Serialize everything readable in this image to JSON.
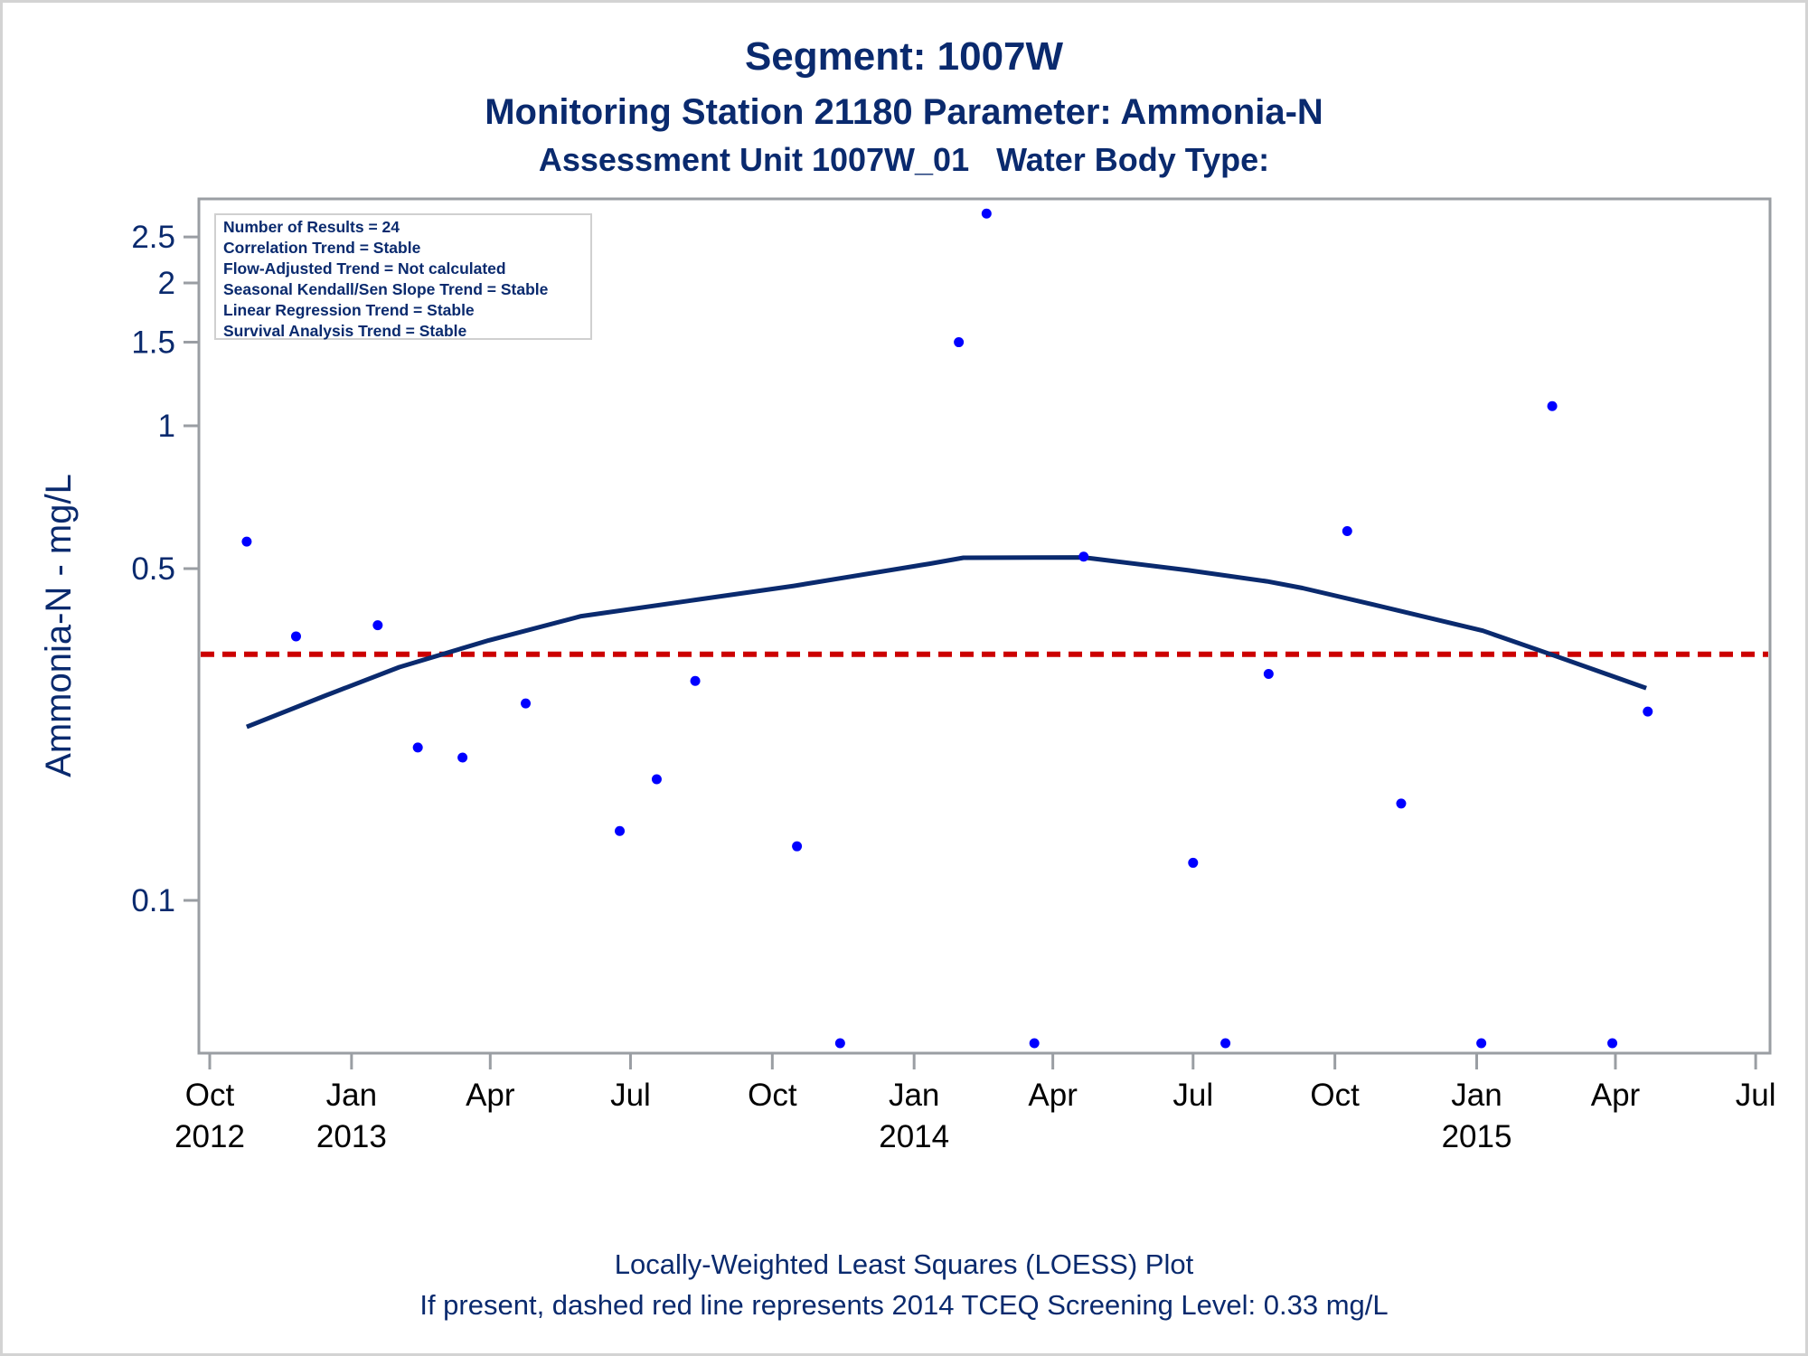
{
  "titles": {
    "line1": "Segment: 1007W",
    "line2": "Monitoring Station 21180 Parameter: Ammonia-N",
    "line3": "Assessment Unit 1007W_01   Water Body Type:"
  },
  "footnotes": {
    "line1": "Locally-Weighted Least Squares (LOESS) Plot",
    "line2": "If present, dashed red line represents 2014 TCEQ Screening Level: 0.33 mg/L"
  },
  "stats_box": [
    "Number of Results = 24",
    "Correlation Trend = Stable",
    "Flow-Adjusted Trend = Not calculated",
    "Seasonal Kendall/Sen Slope Trend = Stable",
    "Linear Regression Trend = Stable",
    "Survival Analysis Trend = Stable"
  ],
  "colors": {
    "points": "#0000ff",
    "loess": "#0a2a6e",
    "screening_line": "#cc0000",
    "axis": "#9a9ea3",
    "text": "#0a2a6e"
  },
  "chart_data": {
    "type": "scatter",
    "title": "Segment: 1007W",
    "xlabel": "",
    "ylabel": "Ammonia-N - mg/L",
    "yscale": "log",
    "ylim": [
      0.048,
      3.0
    ],
    "xlim": [
      "2012-09-24",
      "2015-07-10"
    ],
    "grid": false,
    "y_ticks": [
      {
        "value": 0.1,
        "label": "0.1"
      },
      {
        "value": 0.5,
        "label": "0.5"
      },
      {
        "value": 1,
        "label": "1"
      },
      {
        "value": 1.5,
        "label": "1.5"
      },
      {
        "value": 2,
        "label": "2"
      },
      {
        "value": 2.5,
        "label": "2.5"
      }
    ],
    "x_ticks": [
      {
        "date": "2012-10-01",
        "label": "Oct",
        "year": "2012"
      },
      {
        "date": "2013-01-01",
        "label": "Jan",
        "year": "2013"
      },
      {
        "date": "2013-04-01",
        "label": "Apr",
        "year": ""
      },
      {
        "date": "2013-07-01",
        "label": "Jul",
        "year": ""
      },
      {
        "date": "2013-10-01",
        "label": "Oct",
        "year": ""
      },
      {
        "date": "2014-01-01",
        "label": "Jan",
        "year": "2014"
      },
      {
        "date": "2014-04-01",
        "label": "Apr",
        "year": ""
      },
      {
        "date": "2014-07-01",
        "label": "Jul",
        "year": ""
      },
      {
        "date": "2014-10-01",
        "label": "Oct",
        "year": ""
      },
      {
        "date": "2015-01-01",
        "label": "Jan",
        "year": "2015"
      },
      {
        "date": "2015-04-01",
        "label": "Apr",
        "year": ""
      },
      {
        "date": "2015-07-01",
        "label": "Jul",
        "year": ""
      }
    ],
    "series": [
      {
        "name": "Ammonia-N results",
        "kind": "scatter",
        "points": [
          {
            "date": "2012-10-25",
            "value": 0.57
          },
          {
            "date": "2012-11-26",
            "value": 0.36
          },
          {
            "date": "2013-01-18",
            "value": 0.38
          },
          {
            "date": "2013-02-13",
            "value": 0.21
          },
          {
            "date": "2013-03-14",
            "value": 0.2
          },
          {
            "date": "2013-04-24",
            "value": 0.26
          },
          {
            "date": "2013-06-24",
            "value": 0.14
          },
          {
            "date": "2013-07-18",
            "value": 0.18
          },
          {
            "date": "2013-08-12",
            "value": 0.29
          },
          {
            "date": "2013-10-17",
            "value": 0.13
          },
          {
            "date": "2013-11-14",
            "value": 0.05
          },
          {
            "date": "2014-01-30",
            "value": 1.5
          },
          {
            "date": "2014-02-17",
            "value": 2.8
          },
          {
            "date": "2014-03-20",
            "value": 0.05
          },
          {
            "date": "2014-04-21",
            "value": 0.53
          },
          {
            "date": "2014-07-01",
            "value": 0.12
          },
          {
            "date": "2014-07-22",
            "value": 0.05
          },
          {
            "date": "2014-08-19",
            "value": 0.3
          },
          {
            "date": "2014-10-09",
            "value": 0.6
          },
          {
            "date": "2014-11-13",
            "value": 0.16
          },
          {
            "date": "2015-01-04",
            "value": 0.05
          },
          {
            "date": "2015-02-19",
            "value": 1.1
          },
          {
            "date": "2015-03-30",
            "value": 0.05
          },
          {
            "date": "2015-04-22",
            "value": 0.25
          }
        ]
      },
      {
        "name": "LOESS fit",
        "kind": "line",
        "points": [
          {
            "date": "2012-10-25",
            "value": 0.232
          },
          {
            "date": "2012-12-15",
            "value": 0.27
          },
          {
            "date": "2013-02-01",
            "value": 0.31
          },
          {
            "date": "2013-03-31",
            "value": 0.353
          },
          {
            "date": "2013-05-30",
            "value": 0.397
          },
          {
            "date": "2013-08-13",
            "value": 0.43
          },
          {
            "date": "2013-10-15",
            "value": 0.46
          },
          {
            "date": "2014-01-11",
            "value": 0.512
          },
          {
            "date": "2014-02-02",
            "value": 0.527
          },
          {
            "date": "2014-04-21",
            "value": 0.528
          },
          {
            "date": "2014-06-28",
            "value": 0.496
          },
          {
            "date": "2014-08-18",
            "value": 0.47
          },
          {
            "date": "2014-09-10",
            "value": 0.455
          },
          {
            "date": "2014-10-26",
            "value": 0.42
          },
          {
            "date": "2015-01-05",
            "value": 0.37
          },
          {
            "date": "2015-02-18",
            "value": 0.33
          },
          {
            "date": "2015-04-21",
            "value": 0.28
          }
        ]
      },
      {
        "name": "2014 TCEQ Screening Level",
        "kind": "reference_line",
        "value": 0.33
      }
    ]
  }
}
